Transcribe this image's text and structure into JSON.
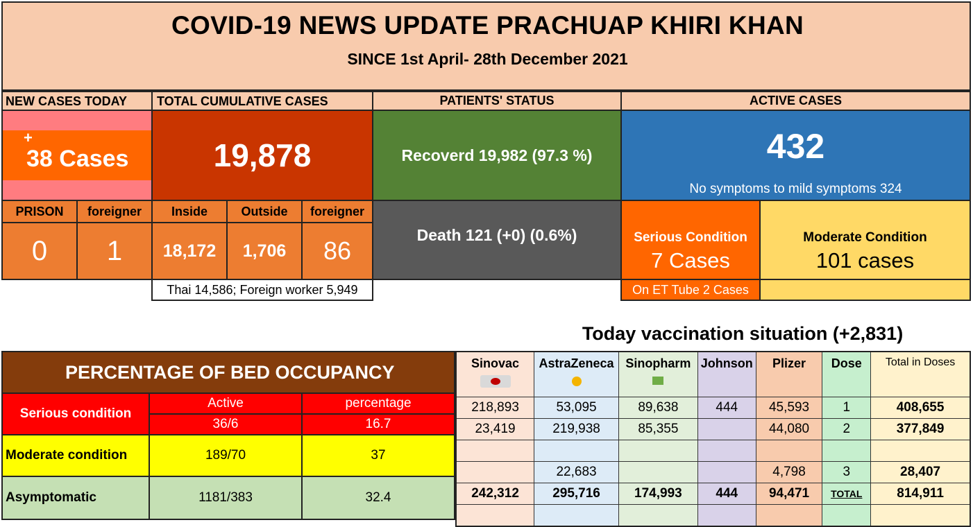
{
  "header": {
    "title": "COVID-19 NEWS UPDATE PRACHUAP KHIRI KHAN",
    "subtitle": "SINCE 1st April- 28th December 2021"
  },
  "new_cases": {
    "header": "NEW CASES TODAY",
    "plus": "+",
    "value": "38 Cases",
    "prison_label": "PRISON",
    "prison_value": "0",
    "foreigner_label": "foreigner",
    "foreigner_value": "1"
  },
  "cumulative": {
    "header": "TOTAL CUMULATIVE CASES",
    "value": "19,878",
    "inside_label": "Inside",
    "inside_value": "18,172",
    "outside_label": "Outside",
    "outside_value": "1,706",
    "foreigner_label": "foreigner",
    "foreigner_value": "86",
    "note": "Thai 14,586; Foreign worker 5,949"
  },
  "patients": {
    "header": "PATIENTS' STATUS",
    "recovered": "Recoverd 19,982 (97.3 %)",
    "death": "Death 121 (+0) (0.6%)"
  },
  "active": {
    "header": "ACTIVE CASES",
    "value": "432",
    "mild": "No symptoms to mild symptoms 324",
    "serious_label": "Serious Condition",
    "serious_value": "7 Cases",
    "et_tube": "On ET Tube 2 Cases",
    "moderate_label": "Moderate Condition",
    "moderate_value": "101 cases"
  },
  "bed": {
    "title": "PERCENTAGE OF BED OCCUPANCY",
    "serious_label": "Serious condition",
    "col_active": "Active",
    "col_percentage": "percentage",
    "serious_active": "36/6",
    "serious_pct": "16.7",
    "moderate_label": "Moderate condition",
    "moderate_active": "189/70",
    "moderate_pct": "37",
    "asym_label": "Asymptomatic",
    "asym_active": "1181/383",
    "asym_pct": "32.4"
  },
  "vaccination": {
    "title": "Today vaccination situation (+2,831)",
    "headers": [
      "Sinovac",
      "AstraZeneca",
      "Sinopharm",
      "Johnson",
      "Plizer",
      "Dose",
      "Total in Doses"
    ],
    "row1": [
      "218,893",
      "53,095",
      "89,638",
      "444",
      "45,593",
      "1",
      "408,655"
    ],
    "row2": [
      "23,419",
      "219,938",
      "85,355",
      "",
      "44,080",
      "2",
      "377,849"
    ],
    "row3": [
      "",
      "22,683",
      "",
      "",
      "4,798",
      "3",
      "28,407"
    ],
    "total": [
      "242,312",
      "295,716",
      "174,993",
      "444",
      "94,471",
      "TOTAL",
      "814,911"
    ]
  },
  "colors": {
    "peach": "#f8cbad",
    "orange": "#ff6600",
    "dark_red": "#c93500",
    "green": "#548235",
    "blue": "#2e75b6",
    "gray": "#595959",
    "yellow": "#ffd966",
    "bed_brown": "#843c0c",
    "red": "#ff0000",
    "bright_yellow": "#ffff00",
    "light_green": "#c5e0b4"
  }
}
